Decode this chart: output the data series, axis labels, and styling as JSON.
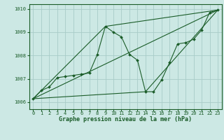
{
  "title": "Graphe pression niveau de la mer (hPa)",
  "bg_color": "#cce8e4",
  "grid_color": "#a8ccc8",
  "line_color": "#1a5c28",
  "xlim": [
    -0.5,
    23.5
  ],
  "ylim": [
    1005.7,
    1010.2
  ],
  "yticks": [
    1006,
    1007,
    1008,
    1009,
    1010
  ],
  "xticks": [
    0,
    1,
    2,
    3,
    4,
    5,
    6,
    7,
    8,
    9,
    10,
    11,
    12,
    13,
    14,
    15,
    16,
    17,
    18,
    19,
    20,
    21,
    22,
    23
  ],
  "series1_x": [
    0,
    1,
    2,
    3,
    4,
    5,
    6,
    7,
    8,
    9,
    10,
    11,
    12,
    13,
    14,
    15,
    16,
    17,
    18,
    19,
    20,
    21,
    22,
    23
  ],
  "series1_y": [
    1006.15,
    1006.5,
    1006.65,
    1007.05,
    1007.1,
    1007.15,
    1007.2,
    1007.25,
    1008.05,
    1009.25,
    1009.0,
    1008.8,
    1008.05,
    1007.8,
    1006.45,
    1006.45,
    1006.95,
    1007.7,
    1008.5,
    1008.55,
    1008.7,
    1009.1,
    1009.85,
    1009.95
  ],
  "series2_x": [
    0,
    23
  ],
  "series2_y": [
    1006.15,
    1009.95
  ],
  "series3_x": [
    0,
    9,
    23
  ],
  "series3_y": [
    1006.15,
    1009.25,
    1009.95
  ],
  "series4_x": [
    0,
    14,
    23
  ],
  "series4_y": [
    1006.15,
    1006.45,
    1009.95
  ]
}
